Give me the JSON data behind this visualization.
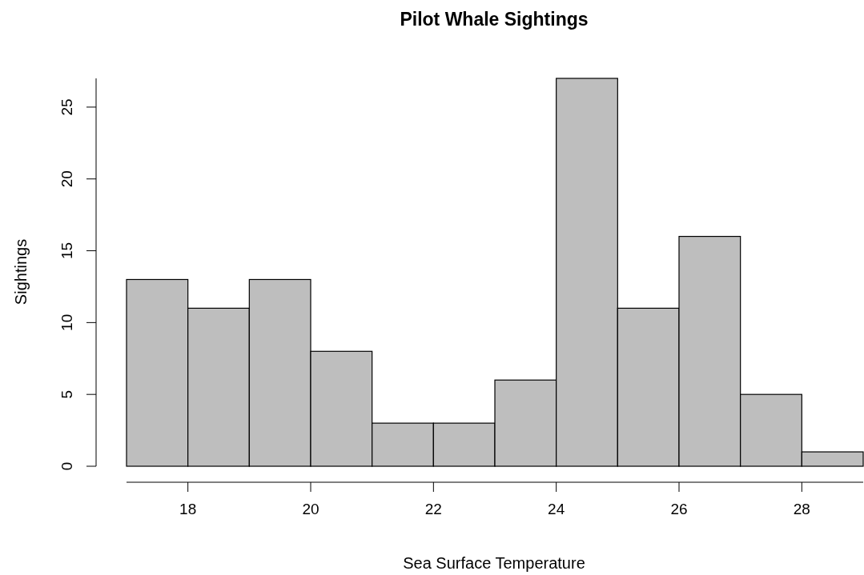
{
  "chart_data": {
    "type": "histogram",
    "title": "Pilot Whale Sightings",
    "xlabel": "Sea Surface Temperature",
    "ylabel": "Sightings",
    "bins": [
      17,
      18,
      19,
      20,
      21,
      22,
      23,
      24,
      25,
      26,
      27,
      28,
      29
    ],
    "values": [
      13,
      11,
      13,
      8,
      3,
      3,
      6,
      27,
      11,
      16,
      5,
      1
    ],
    "color": "#bebebe",
    "xlim": [
      17,
      29
    ],
    "xticks": [
      18,
      20,
      22,
      24,
      26,
      28
    ],
    "ylim": [
      0,
      27
    ],
    "yticks": [
      0,
      5,
      10,
      15,
      20,
      25
    ]
  }
}
